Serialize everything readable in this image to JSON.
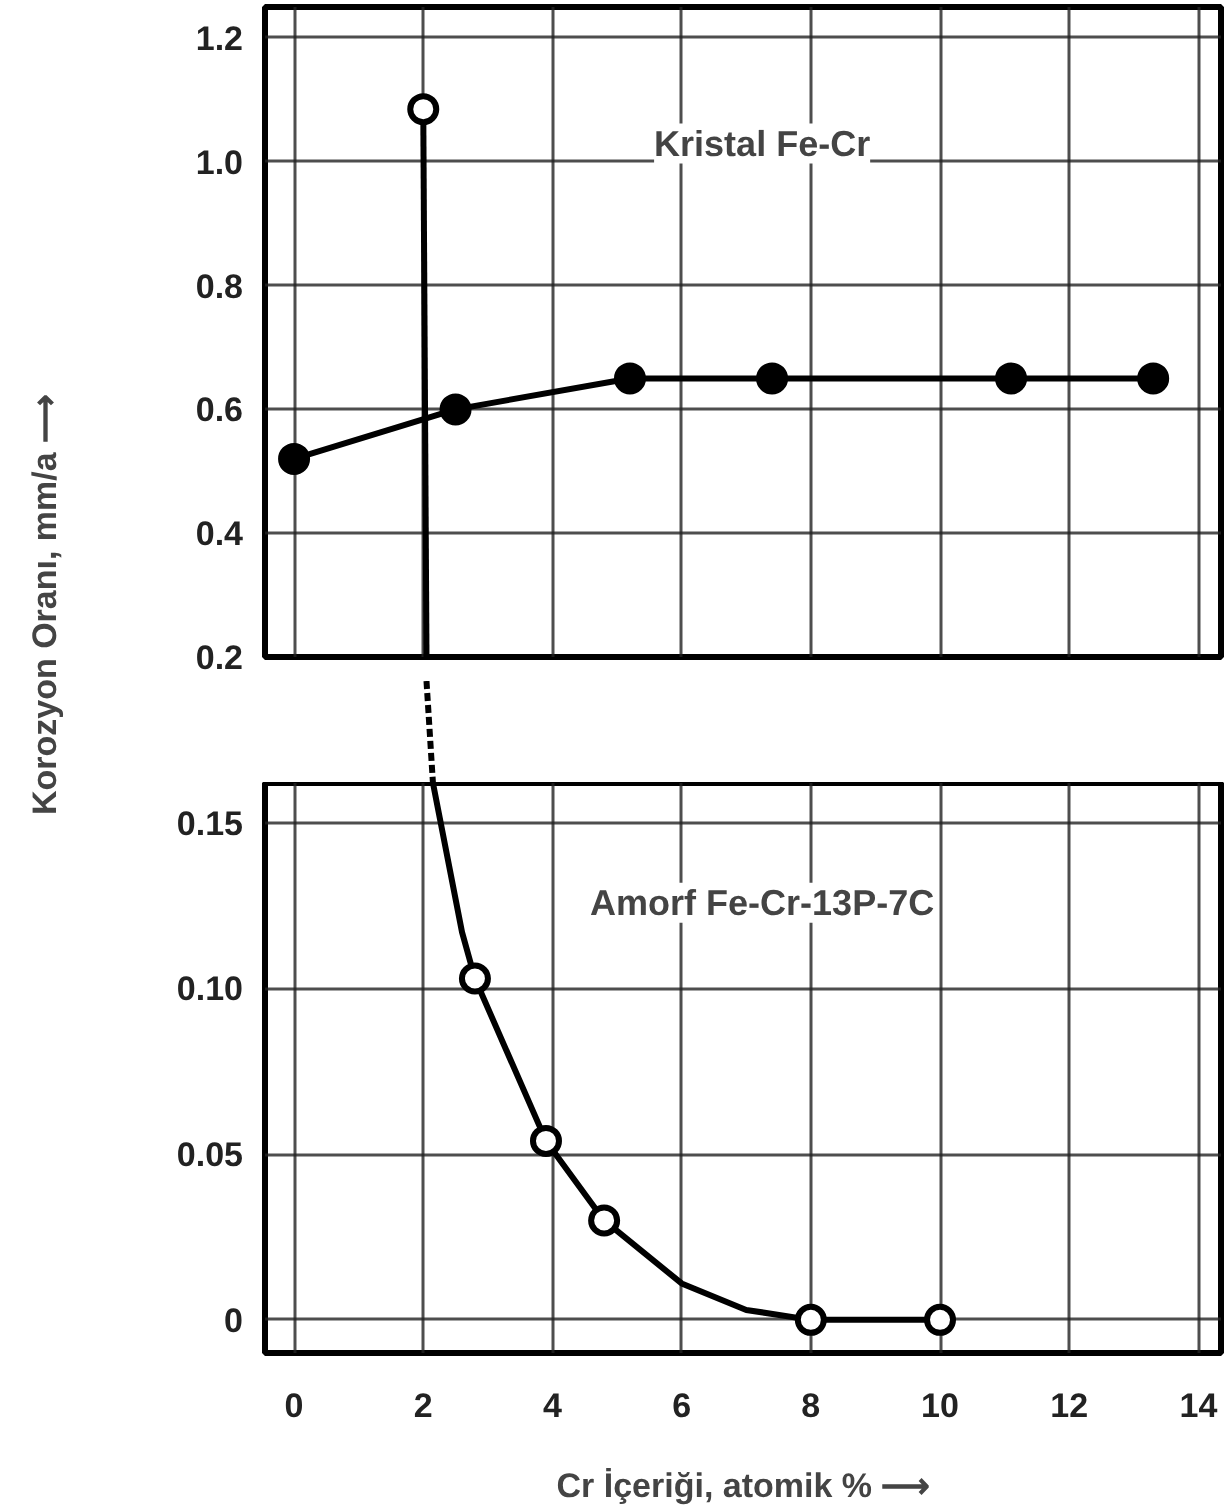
{
  "chart_data": [
    {
      "type": "line",
      "ylabel": "Korozyon Oranı, mm/a ⟶",
      "xlim": [
        -0.45,
        14.35
      ],
      "ylim": [
        0.2,
        1.25
      ],
      "xticks": [
        0,
        2,
        4,
        6,
        8,
        10,
        12,
        14
      ],
      "yticks": [
        {
          "value": 0.2,
          "label": "0.2"
        },
        {
          "value": 0.4,
          "label": "0.4"
        },
        {
          "value": 0.6,
          "label": "0.6"
        },
        {
          "value": 0.8,
          "label": "0.8"
        },
        {
          "value": 1.0,
          "label": "1.0"
        },
        {
          "value": 1.2,
          "label": "1.2"
        }
      ],
      "tick_labels": "y",
      "grid": true,
      "series": [
        {
          "name": "Kristal Fe-Cr",
          "marker": "circle",
          "line_style": "solid",
          "color": "#000000",
          "x": [
            0,
            2.5,
            5.2,
            7.4,
            11.1,
            13.3
          ],
          "values": [
            0.52,
            0.6,
            0.65,
            0.65,
            0.65,
            0.65
          ]
        },
        {
          "marker": "none",
          "line_style": "solid",
          "color": "#000000",
          "x": [
            2,
            2.05
          ],
          "values": [
            1.085,
            0.2
          ]
        },
        {
          "type": "scatter",
          "marker": "circle",
          "color": "#000000",
          "x": [
            2
          ],
          "values": [
            1.085
          ]
        }
      ]
    },
    {
      "type": "line",
      "xlabel": "Cr İçeriği, atomik % ⟶",
      "xlim": [
        -0.45,
        14.35
      ],
      "ylim": [
        -0.01,
        0.162
      ],
      "xticks": [
        0,
        2,
        4,
        6,
        8,
        10,
        12,
        14
      ],
      "yticks": [
        {
          "value": 0,
          "label": "0"
        },
        {
          "value": 0.05,
          "label": "0.05"
        },
        {
          "value": 0.1,
          "label": "0.10"
        },
        {
          "value": 0.15,
          "label": "0.15"
        }
      ],
      "grid": true,
      "series": [
        {
          "name": "Amorf Fe-Cr-13P-7C",
          "marker": "none",
          "line_style": "solid",
          "color": "#000000",
          "x": [
            2.15,
            2.6,
            2.8,
            3.9,
            4.8,
            6,
            7,
            8,
            10
          ],
          "values": [
            0.162,
            0.117,
            0.103,
            0.054,
            0.03,
            0.011,
            0.003,
            0,
            0
          ]
        },
        {
          "type": "scatter",
          "marker": "circle",
          "color": "#000000",
          "x": [
            2.8,
            3.9,
            4.8,
            8,
            10
          ],
          "values": [
            0.103,
            0.054,
            0.03,
            0,
            0
          ]
        }
      ]
    }
  ]
}
